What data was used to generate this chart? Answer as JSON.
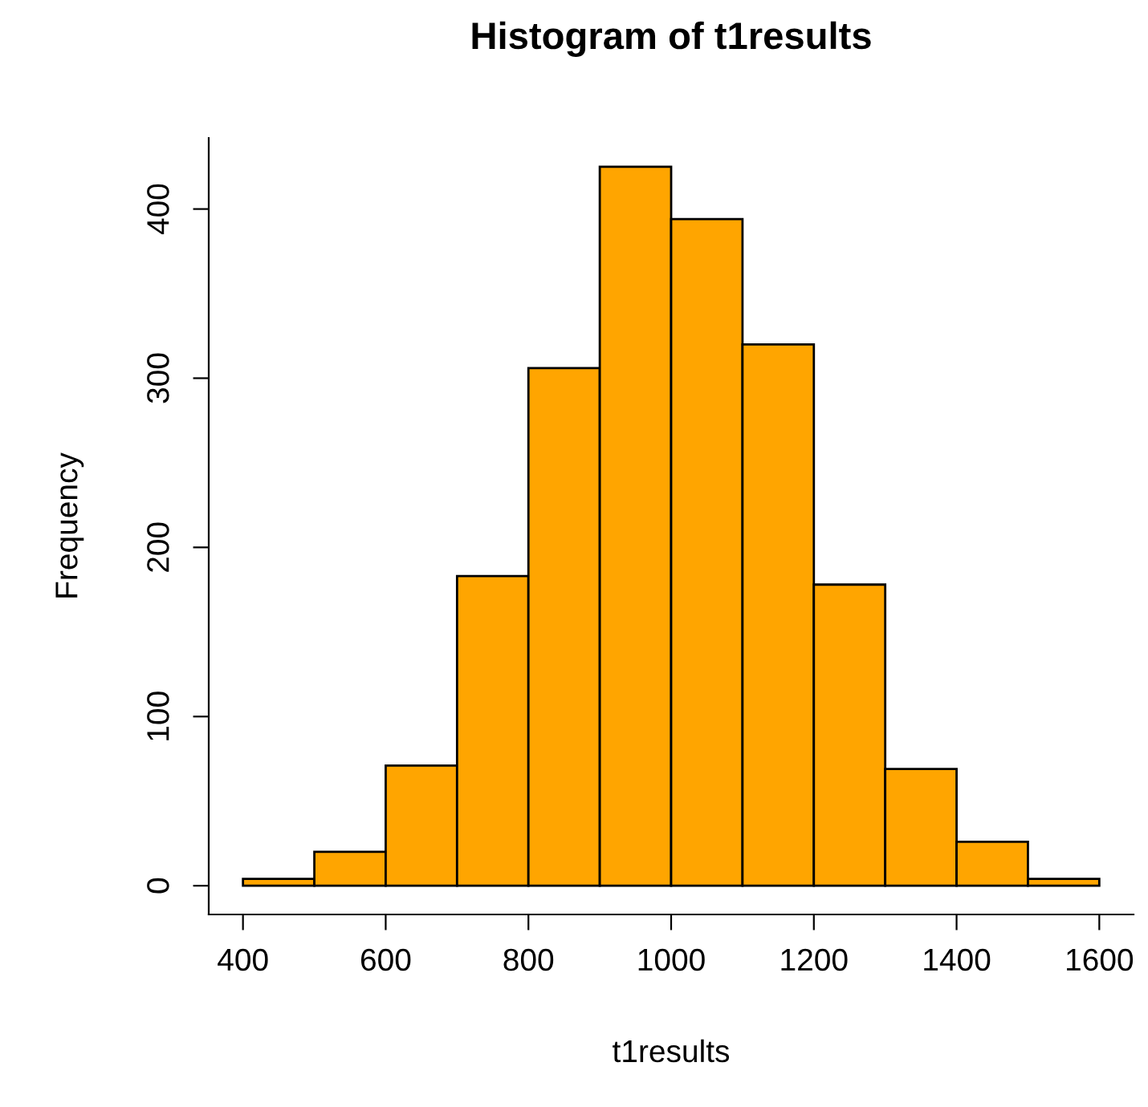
{
  "chart_data": {
    "type": "histogram",
    "title": "Histogram of t1results",
    "xlabel": "t1results",
    "ylabel": "Frequency",
    "bins": [
      400,
      500,
      600,
      700,
      800,
      900,
      1000,
      1100,
      1200,
      1300,
      1400,
      1500,
      1600
    ],
    "values": [
      4,
      20,
      71,
      183,
      306,
      425,
      394,
      320,
      178,
      69,
      26,
      4
    ],
    "color": "#ffa500",
    "xlim": [
      352,
      1648
    ],
    "ylim": [
      -17,
      442
    ],
    "xticks": [
      400,
      600,
      800,
      1000,
      1200,
      1400,
      1600
    ],
    "yticks": [
      0,
      100,
      200,
      300,
      400
    ],
    "grid": false
  }
}
